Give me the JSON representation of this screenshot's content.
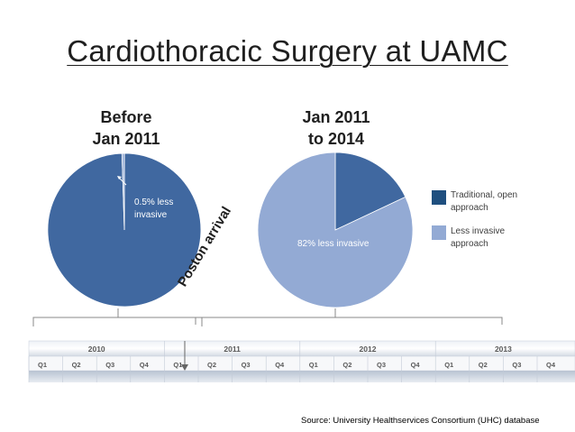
{
  "title": "Cardiothoracic Surgery at UAMC",
  "chart_data": [
    {
      "type": "pie",
      "title": "Before Jan 2011",
      "title_lines": [
        "Before",
        "Jan 2011"
      ],
      "categories": [
        "Traditional, open approach",
        "Less invasive approach"
      ],
      "values": [
        99.5,
        0.5
      ],
      "colors": [
        "#4068a0",
        "#93aad4"
      ],
      "annotation": "0.5% less invasive",
      "annotation_lines": [
        "0.5% less",
        "invasive"
      ]
    },
    {
      "type": "pie",
      "title": "Jan 2011 to 2014",
      "title_lines": [
        "Jan 2011",
        "to 2014"
      ],
      "categories": [
        "Traditional, open approach",
        "Less invasive approach"
      ],
      "values": [
        18,
        82
      ],
      "colors": [
        "#4068a0",
        "#93aad4"
      ],
      "annotation": "82% less invasive"
    }
  ],
  "legend": [
    {
      "lines": [
        "Traditional, open",
        "approach"
      ],
      "color": "#1f4f7f"
    },
    {
      "lines": [
        "Less invasive",
        "approach"
      ],
      "color": "#93aad4"
    }
  ],
  "event_label": "Poston arrival",
  "timeline": {
    "years": [
      "2010",
      "2011",
      "2012",
      "2013"
    ],
    "quarters": [
      "Q1",
      "Q2",
      "Q3",
      "Q4",
      "Q1",
      "Q2",
      "Q3",
      "Q4",
      "Q1",
      "Q2",
      "Q3",
      "Q4",
      "Q1",
      "Q2",
      "Q3",
      "Q4"
    ]
  },
  "source": "Source: University Healthservices Consortium (UHC) database"
}
